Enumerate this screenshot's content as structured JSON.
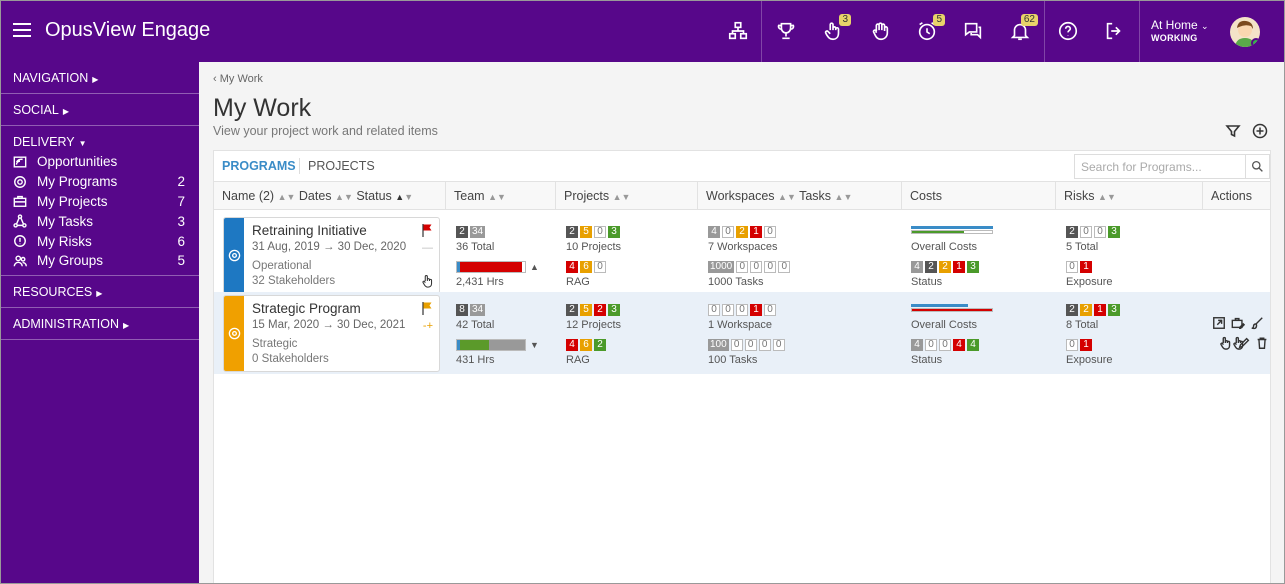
{
  "app": {
    "title": "OpusView Engage"
  },
  "header": {
    "badges": {
      "hand": "3",
      "timer": "5",
      "bell": "62"
    },
    "status_line1": "At Home",
    "status_line2": "WORKING"
  },
  "sidebar": {
    "navigation": "NAVIGATION",
    "social": "SOCIAL",
    "delivery": "DELIVERY",
    "items": [
      {
        "label": "Opportunities",
        "count": ""
      },
      {
        "label": "My Programs",
        "count": "2"
      },
      {
        "label": "My Projects",
        "count": "7"
      },
      {
        "label": "My Tasks",
        "count": "3"
      },
      {
        "label": "My Risks",
        "count": "6"
      },
      {
        "label": "My Groups",
        "count": "5"
      }
    ],
    "resources": "RESOURCES",
    "administration": "ADMINISTRATION"
  },
  "main": {
    "breadcrumb": "My Work",
    "title": "My Work",
    "subtitle": "View your project work and related items",
    "tabs": {
      "programs": "PROGRAMS",
      "projects": "PROJECTS"
    },
    "search_placeholder": "Search for Programs...",
    "columns": {
      "name": "Name (2)",
      "dates": "Dates",
      "status": "Status",
      "team": "Team",
      "projects": "Projects",
      "workspaces": "Workspaces",
      "tasks": "Tasks",
      "costs": "Costs",
      "risks": "Risks",
      "actions": "Actions"
    }
  },
  "rows": [
    {
      "name": "Retraining Initiative",
      "dates": "31 Aug, 2019 → 30 Dec, 2020",
      "type": "Operational",
      "stakeholders": "32 Stakeholders",
      "strip_color": "#1e78c2",
      "flag_color": "#d40000",
      "trend": "—",
      "team_chips": [
        "2",
        "34"
      ],
      "team_total": "36 Total",
      "team_hours": "2,431 Hrs",
      "team_bar_pct": 0.96,
      "team_bar_color": "#d40000",
      "team_arrow": "▲",
      "projects_chips": [
        "2",
        "5",
        "0",
        "3"
      ],
      "projects_label": "10 Projects",
      "rag_chips": [
        "4",
        "6",
        "0"
      ],
      "rag_label": "RAG",
      "ws_chips": [
        "4",
        "0",
        "2",
        "1",
        "0"
      ],
      "ws_label": "7 Workspaces",
      "task_chips": [
        "1000",
        "0",
        "0",
        "0",
        "0"
      ],
      "task_label": "1000 Tasks",
      "cost_label": "Overall Costs",
      "cost_fill_pct": 0.65,
      "cost_fill_color": "#4b9a2a",
      "status_chips": [
        "4",
        "2",
        "2",
        "1",
        "3"
      ],
      "status_label": "Status",
      "risk_chips": [
        "2",
        "0",
        "0",
        "3"
      ],
      "risk_label": "5 Total",
      "exp_chips": [
        "0",
        "1"
      ],
      "exp_label": "Exposure"
    },
    {
      "name": "Strategic Program",
      "dates": "15 Mar, 2020 → 30 Dec, 2021",
      "type": "Strategic",
      "stakeholders": "0 Stakeholders",
      "strip_color": "#f0a000",
      "flag_color": "#e8a000",
      "trend": "-+",
      "team_chips": [
        "8",
        "34"
      ],
      "team_total": "42 Total",
      "team_hours": "431 Hrs",
      "team_bar_pct": 0.45,
      "team_bar_color": "#5b9a2a",
      "team_arrow": "▼",
      "projects_chips": [
        "2",
        "5",
        "2",
        "3"
      ],
      "projects_label": "12 Projects",
      "rag_chips": [
        "4",
        "6",
        "2"
      ],
      "rag_label": "RAG",
      "ws_chips": [
        "0",
        "0",
        "0",
        "1",
        "0"
      ],
      "ws_label": "1 Workspace",
      "task_chips": [
        "100",
        "0",
        "0",
        "0",
        "0"
      ],
      "task_label": "100 Tasks",
      "cost_label": "Overall Costs",
      "cost_fill_pct": 1.0,
      "cost_fill_color": "#d40000",
      "status_chips": [
        "4",
        "0",
        "0",
        "4",
        "4"
      ],
      "status_label": "Status",
      "risk_chips": [
        "2",
        "2",
        "1",
        "3"
      ],
      "risk_label": "8 Total",
      "exp_chips": [
        "0",
        "1"
      ],
      "exp_label": "Exposure"
    }
  ]
}
